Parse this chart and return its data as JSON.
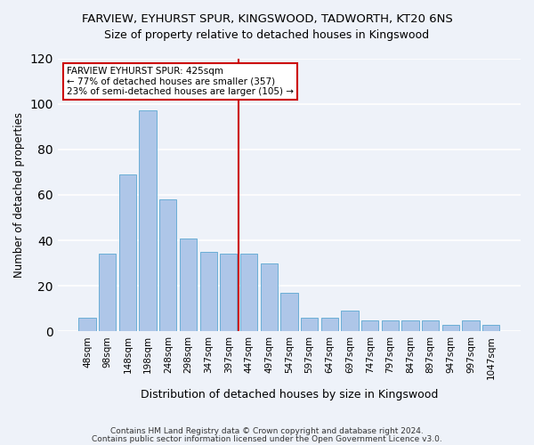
{
  "title": "FARVIEW, EYHURST SPUR, KINGSWOOD, TADWORTH, KT20 6NS",
  "subtitle": "Size of property relative to detached houses in Kingswood",
  "xlabel": "Distribution of detached houses by size in Kingswood",
  "ylabel": "Number of detached properties",
  "footnote1": "Contains HM Land Registry data © Crown copyright and database right 2024.",
  "footnote2": "Contains public sector information licensed under the Open Government Licence v3.0.",
  "bar_labels": [
    "48sqm",
    "98sqm",
    "148sqm",
    "198sqm",
    "248sqm",
    "298sqm",
    "347sqm",
    "397sqm",
    "447sqm",
    "497sqm",
    "547sqm",
    "597sqm",
    "647sqm",
    "697sqm",
    "747sqm",
    "797sqm",
    "847sqm",
    "897sqm",
    "947sqm",
    "997sqm",
    "1047sqm"
  ],
  "bar_values": [
    6,
    34,
    69,
    97,
    58,
    41,
    35,
    34,
    34,
    30,
    17,
    6,
    6,
    9,
    5,
    5,
    5,
    5,
    3,
    5,
    3
  ],
  "bar_color": "#aec6e8",
  "bar_edge_color": "#6aaed6",
  "highlight_line_index": 8,
  "annotation_line1": "FARVIEW EYHURST SPUR: 425sqm",
  "annotation_line2": "← 77% of detached houses are smaller (357)",
  "annotation_line3": "23% of semi-detached houses are larger (105) →",
  "annotation_box_color": "#cc0000",
  "ylim": [
    0,
    120
  ],
  "yticks": [
    0,
    20,
    40,
    60,
    80,
    100,
    120
  ],
  "bg_color": "#eef2f9",
  "plot_bg_color": "#eef2f9"
}
